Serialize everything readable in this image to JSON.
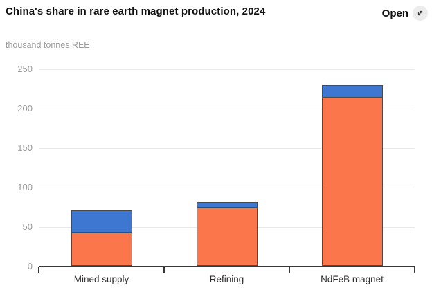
{
  "header": {
    "title": "China's share in rare earth magnet production, 2024",
    "open_label": "Open",
    "open_icon": "expand-diagonal-icon"
  },
  "subtitle": "thousand tonnes REE",
  "chart_data": {
    "type": "bar",
    "stacked": true,
    "title": "China's share in rare earth magnet production, 2024",
    "ylabel": "thousand tonnes REE",
    "xlabel": "",
    "categories": [
      "Mined supply",
      "Refining",
      "NdFeB magnet"
    ],
    "series": [
      {
        "name": "orange-bottom-segment",
        "color": "#fc764b",
        "values": [
          43,
          74,
          214
        ]
      },
      {
        "name": "blue-top-segment",
        "color": "#3d77d1",
        "values": [
          28,
          7,
          16
        ]
      }
    ],
    "stack_totals": [
      71,
      81,
      230
    ],
    "ylim": [
      0,
      250
    ],
    "yticks": [
      0,
      50,
      100,
      150,
      200,
      250
    ],
    "grid": true,
    "legend": false
  },
  "colors": {
    "grid": "#e8e8e8",
    "axis": "#383838",
    "tick_label": "#9b9b9b",
    "category_label": "#2e2e2e",
    "bar_outline": "#4a4a4a",
    "icon_circle_bg": "#ececec",
    "icon_glyph": "#333333"
  }
}
